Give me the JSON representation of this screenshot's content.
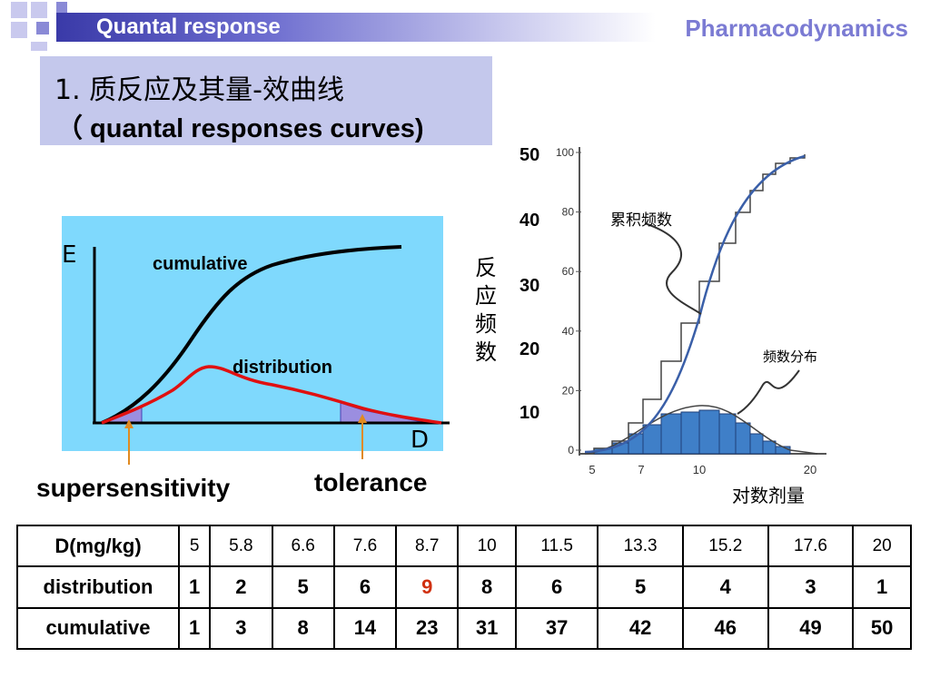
{
  "header": {
    "title": "Quantal response",
    "course": "Pharmacodynamics"
  },
  "heading": {
    "line1": "1.  质反应及其量-效曲线",
    "line2": "（ quantal responses curves)"
  },
  "schematic": {
    "y_axis_label": "E",
    "x_axis_label": "D",
    "cumulative_label": "cumulative",
    "distribution_label": "distribution",
    "supersensitivity_label": "supersensitivity",
    "tolerance_label": "tolerance",
    "colors": {
      "background": "#7fd9fd",
      "cumulative": "#000000",
      "distribution": "#e01010",
      "shade": "#9b8ee0",
      "arrow": "#e08a20"
    }
  },
  "histogram": {
    "left_ticks": [
      "50",
      "40",
      "30",
      "20",
      "10"
    ],
    "inner_ticks": [
      "100",
      "80",
      "60",
      "40",
      "20",
      "0"
    ],
    "x_ticks": [
      "5",
      "7",
      "10",
      "20"
    ],
    "ylabel": "反应频数",
    "xlabel": "对数剂量",
    "cumulative_label": "累积频数",
    "distribution_label": "频数分布",
    "colors": {
      "bars": "#3f7fc8",
      "curve": "#3a5fa8"
    }
  },
  "table": {
    "header": [
      "D(mg/kg)",
      "5",
      "5.8",
      "6.6",
      "7.6",
      "8.7",
      "10",
      "11.5",
      "13.3",
      "15.2",
      "17.6",
      "20"
    ],
    "rows": [
      [
        "distribution",
        "1",
        "2",
        "5",
        "6",
        "9",
        "8",
        "6",
        "5",
        "4",
        "3",
        "1"
      ],
      [
        "cumulative",
        "1",
        "3",
        "8",
        "14",
        "23",
        "31",
        "37",
        "42",
        "46",
        "49",
        "50"
      ]
    ],
    "highlight_color": "#d03010"
  }
}
